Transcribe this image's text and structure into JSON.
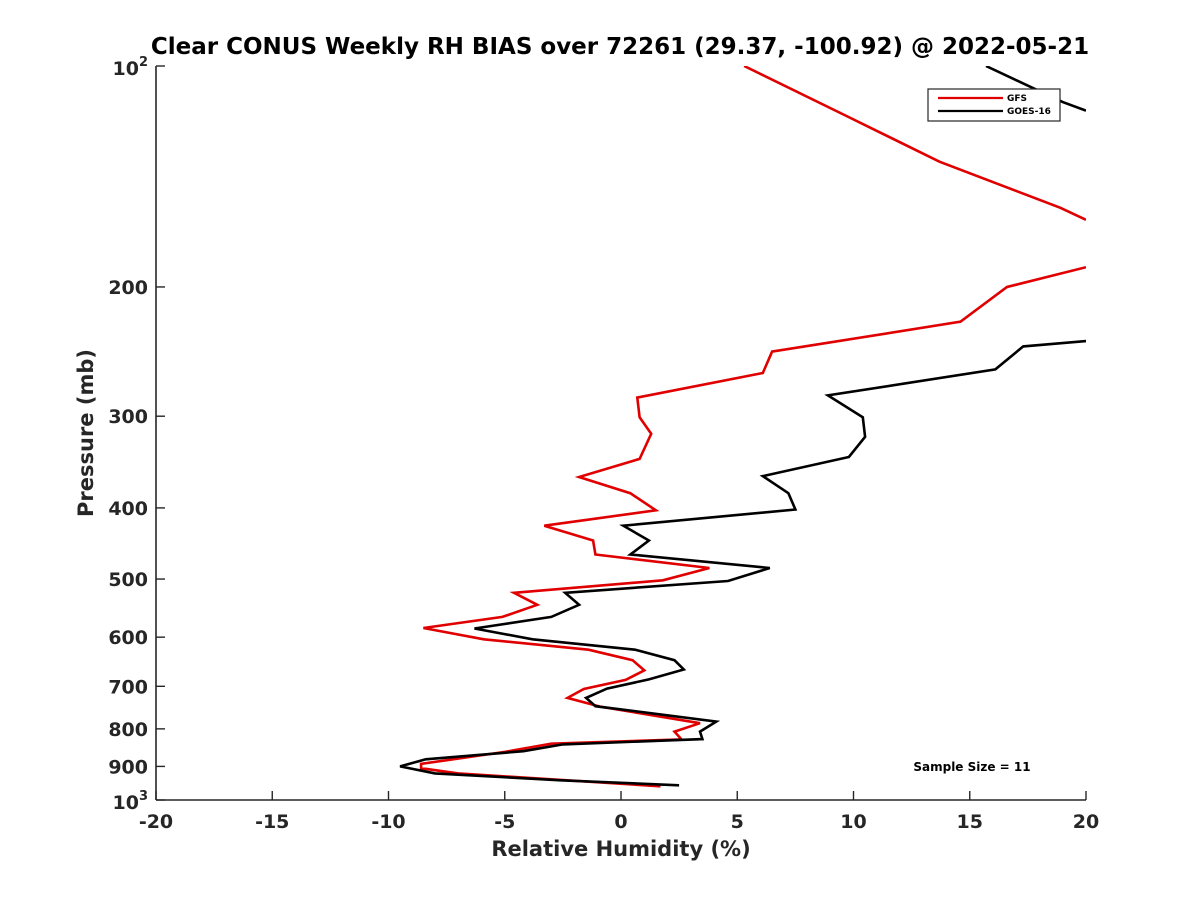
{
  "chart_data": {
    "type": "line",
    "title": "Clear CONUS Weekly RH BIAS over 72261 (29.37, -100.92) @ 2022-05-21",
    "xlabel": "Relative Humidity (%)",
    "ylabel": "Pressure (mb)",
    "xlim": [
      -20,
      20
    ],
    "ylim": [
      100,
      1000
    ],
    "y_scale": "log",
    "y_reversed": true,
    "grid": false,
    "legend_position": "top-right",
    "x_ticks": [
      -20,
      -15,
      -10,
      -5,
      0,
      5,
      10,
      15,
      20
    ],
    "x_tick_labels": [
      "-20",
      "-15",
      "-10",
      "-5",
      "0",
      "5",
      "10",
      "15",
      "20"
    ],
    "y_ticks": [
      200,
      300,
      400,
      500,
      600,
      700,
      800,
      900
    ],
    "y_tick_labels": [
      "200",
      "300",
      "400",
      "500",
      "600",
      "700",
      "800",
      "900"
    ],
    "y_tick_top": {
      "base": "10",
      "exp": "2"
    },
    "y_tick_bottom": {
      "base": "10",
      "exp": "3"
    },
    "annotation": "Sample Size = 11",
    "series": [
      {
        "name": "GFS",
        "color": "#e00000",
        "points": [
          {
            "x": 5.3,
            "y": 100
          },
          {
            "x": 9.7,
            "y": 117
          },
          {
            "x": 13.7,
            "y": 135
          },
          {
            "x": 18.9,
            "y": 156
          },
          {
            "x": 20.0,
            "y": 162
          },
          {
            "x": null,
            "y": 170
          },
          {
            "x": 20.0,
            "y": 188
          },
          {
            "x": 16.6,
            "y": 200
          },
          {
            "x": 14.6,
            "y": 223
          },
          {
            "x": 6.5,
            "y": 245
          },
          {
            "x": 6.1,
            "y": 262
          },
          {
            "x": 0.7,
            "y": 283
          },
          {
            "x": 0.8,
            "y": 301
          },
          {
            "x": 1.3,
            "y": 317
          },
          {
            "x": 0.8,
            "y": 343
          },
          {
            "x": -1.8,
            "y": 363
          },
          {
            "x": 0.4,
            "y": 382
          },
          {
            "x": 1.5,
            "y": 403
          },
          {
            "x": -3.3,
            "y": 423
          },
          {
            "x": -1.2,
            "y": 443
          },
          {
            "x": -1.1,
            "y": 463
          },
          {
            "x": 3.8,
            "y": 483
          },
          {
            "x": 1.8,
            "y": 502
          },
          {
            "x": -4.6,
            "y": 522
          },
          {
            "x": -3.6,
            "y": 542
          },
          {
            "x": -5.1,
            "y": 563
          },
          {
            "x": -8.5,
            "y": 583
          },
          {
            "x": -5.9,
            "y": 604
          },
          {
            "x": -1.4,
            "y": 624
          },
          {
            "x": 0.5,
            "y": 645
          },
          {
            "x": 1.0,
            "y": 666
          },
          {
            "x": 0.2,
            "y": 686
          },
          {
            "x": -1.6,
            "y": 706
          },
          {
            "x": -2.3,
            "y": 726
          },
          {
            "x": -0.9,
            "y": 746
          },
          {
            "x": 3.4,
            "y": 786
          },
          {
            "x": 2.3,
            "y": 807
          },
          {
            "x": 2.6,
            "y": 827
          },
          {
            "x": -3.0,
            "y": 838
          },
          {
            "x": -5.0,
            "y": 860
          },
          {
            "x": -8.6,
            "y": 893
          },
          {
            "x": -8.6,
            "y": 905
          },
          {
            "x": -7.0,
            "y": 920
          },
          {
            "x": 1.7,
            "y": 958
          }
        ]
      },
      {
        "name": "GOES-16",
        "color": "#000000",
        "points": [
          {
            "x": 15.7,
            "y": 100
          },
          {
            "x": 19.0,
            "y": 112
          },
          {
            "x": 20.0,
            "y": 115
          },
          {
            "x": null,
            "y": 170
          },
          {
            "x": 20.0,
            "y": 237
          },
          {
            "x": 17.3,
            "y": 241
          },
          {
            "x": 16.1,
            "y": 259
          },
          {
            "x": 8.9,
            "y": 281
          },
          {
            "x": 10.4,
            "y": 301
          },
          {
            "x": 10.5,
            "y": 320
          },
          {
            "x": 9.8,
            "y": 341
          },
          {
            "x": 6.1,
            "y": 362
          },
          {
            "x": 7.2,
            "y": 382
          },
          {
            "x": 7.5,
            "y": 402
          },
          {
            "x": 0.1,
            "y": 423
          },
          {
            "x": 1.2,
            "y": 443
          },
          {
            "x": 0.4,
            "y": 463
          },
          {
            "x": 6.4,
            "y": 483
          },
          {
            "x": 4.6,
            "y": 503
          },
          {
            "x": -2.4,
            "y": 522
          },
          {
            "x": -1.8,
            "y": 542
          },
          {
            "x": -3.0,
            "y": 563
          },
          {
            "x": -6.3,
            "y": 584
          },
          {
            "x": -3.8,
            "y": 604
          },
          {
            "x": 0.6,
            "y": 624
          },
          {
            "x": 2.3,
            "y": 645
          },
          {
            "x": 2.7,
            "y": 664
          },
          {
            "x": 1.2,
            "y": 685
          },
          {
            "x": -0.6,
            "y": 705
          },
          {
            "x": -1.5,
            "y": 726
          },
          {
            "x": -1.1,
            "y": 745
          },
          {
            "x": 4.1,
            "y": 782
          },
          {
            "x": 3.4,
            "y": 807
          },
          {
            "x": 3.5,
            "y": 826
          },
          {
            "x": -2.5,
            "y": 840
          },
          {
            "x": -4.2,
            "y": 858
          },
          {
            "x": -8.4,
            "y": 880
          },
          {
            "x": -9.5,
            "y": 900
          },
          {
            "x": -8.0,
            "y": 920
          },
          {
            "x": -2.6,
            "y": 940
          },
          {
            "x": 2.5,
            "y": 955
          }
        ]
      }
    ]
  }
}
